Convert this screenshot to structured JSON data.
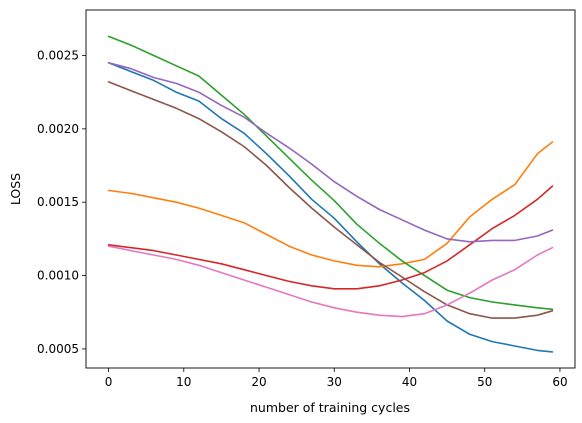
{
  "chart_data": {
    "type": "line",
    "xlabel": "number of training cycles",
    "ylabel": "LOSS",
    "xlim": [
      -3,
      62
    ],
    "ylim": [
      0.00037,
      0.00281
    ],
    "xticks": [
      0,
      10,
      20,
      30,
      40,
      50,
      60
    ],
    "xtick_labels": [
      "0",
      "10",
      "20",
      "30",
      "40",
      "50",
      "60"
    ],
    "yticks": [
      0.0005,
      0.001,
      0.0015,
      0.002,
      0.0025
    ],
    "ytick_labels": [
      "0.0005",
      "0.0010",
      "0.0015",
      "0.0020",
      "0.0025"
    ],
    "grid": false,
    "legend": "none",
    "x": [
      0,
      3,
      6,
      9,
      12,
      15,
      18,
      21,
      24,
      27,
      30,
      33,
      36,
      39,
      42,
      45,
      48,
      51,
      54,
      57,
      59
    ],
    "series": [
      {
        "color": "#1f77b4",
        "values": [
          0.00245,
          0.00239,
          0.00233,
          0.00225,
          0.00219,
          0.00207,
          0.00197,
          0.00183,
          0.00168,
          0.00152,
          0.00139,
          0.00123,
          0.00108,
          0.00095,
          0.00083,
          0.00069,
          0.0006,
          0.00055,
          0.00052,
          0.00049,
          0.00048
        ]
      },
      {
        "color": "#ff7f0e",
        "values": [
          0.00158,
          0.00156,
          0.00153,
          0.0015,
          0.00146,
          0.00141,
          0.00136,
          0.00128,
          0.0012,
          0.00114,
          0.0011,
          0.00107,
          0.00106,
          0.00108,
          0.00111,
          0.00122,
          0.0014,
          0.00152,
          0.00162,
          0.00183,
          0.00191
        ]
      },
      {
        "color": "#2ca02c",
        "values": [
          0.00263,
          0.00257,
          0.0025,
          0.00243,
          0.00236,
          0.00223,
          0.0021,
          0.00195,
          0.0018,
          0.00165,
          0.00151,
          0.00135,
          0.00122,
          0.0011,
          0.001,
          0.0009,
          0.00085,
          0.00082,
          0.0008,
          0.00078,
          0.00077
        ]
      },
      {
        "color": "#d62728",
        "values": [
          0.00121,
          0.00119,
          0.00117,
          0.00114,
          0.00111,
          0.00108,
          0.00104,
          0.001,
          0.00096,
          0.00093,
          0.00091,
          0.00091,
          0.00093,
          0.00097,
          0.00102,
          0.0011,
          0.00121,
          0.00132,
          0.00141,
          0.00152,
          0.00161
        ]
      },
      {
        "color": "#9467bd",
        "values": [
          0.00245,
          0.00241,
          0.00235,
          0.00231,
          0.00225,
          0.00216,
          0.00208,
          0.00197,
          0.00187,
          0.00176,
          0.00164,
          0.00154,
          0.00145,
          0.00138,
          0.00131,
          0.00125,
          0.00123,
          0.00124,
          0.00124,
          0.00127,
          0.00131
        ]
      },
      {
        "color": "#8c564b",
        "values": [
          0.00232,
          0.00226,
          0.0022,
          0.00214,
          0.00207,
          0.00198,
          0.00188,
          0.00175,
          0.0016,
          0.00146,
          0.00133,
          0.00121,
          0.00109,
          0.00099,
          0.00089,
          0.0008,
          0.00074,
          0.00071,
          0.00071,
          0.00073,
          0.00076
        ]
      },
      {
        "color": "#e377c2",
        "values": [
          0.0012,
          0.00117,
          0.00114,
          0.00111,
          0.00107,
          0.00102,
          0.00097,
          0.00092,
          0.00087,
          0.00082,
          0.00078,
          0.00075,
          0.00073,
          0.00072,
          0.00074,
          0.0008,
          0.00088,
          0.00097,
          0.00104,
          0.00114,
          0.00119
        ]
      }
    ]
  }
}
